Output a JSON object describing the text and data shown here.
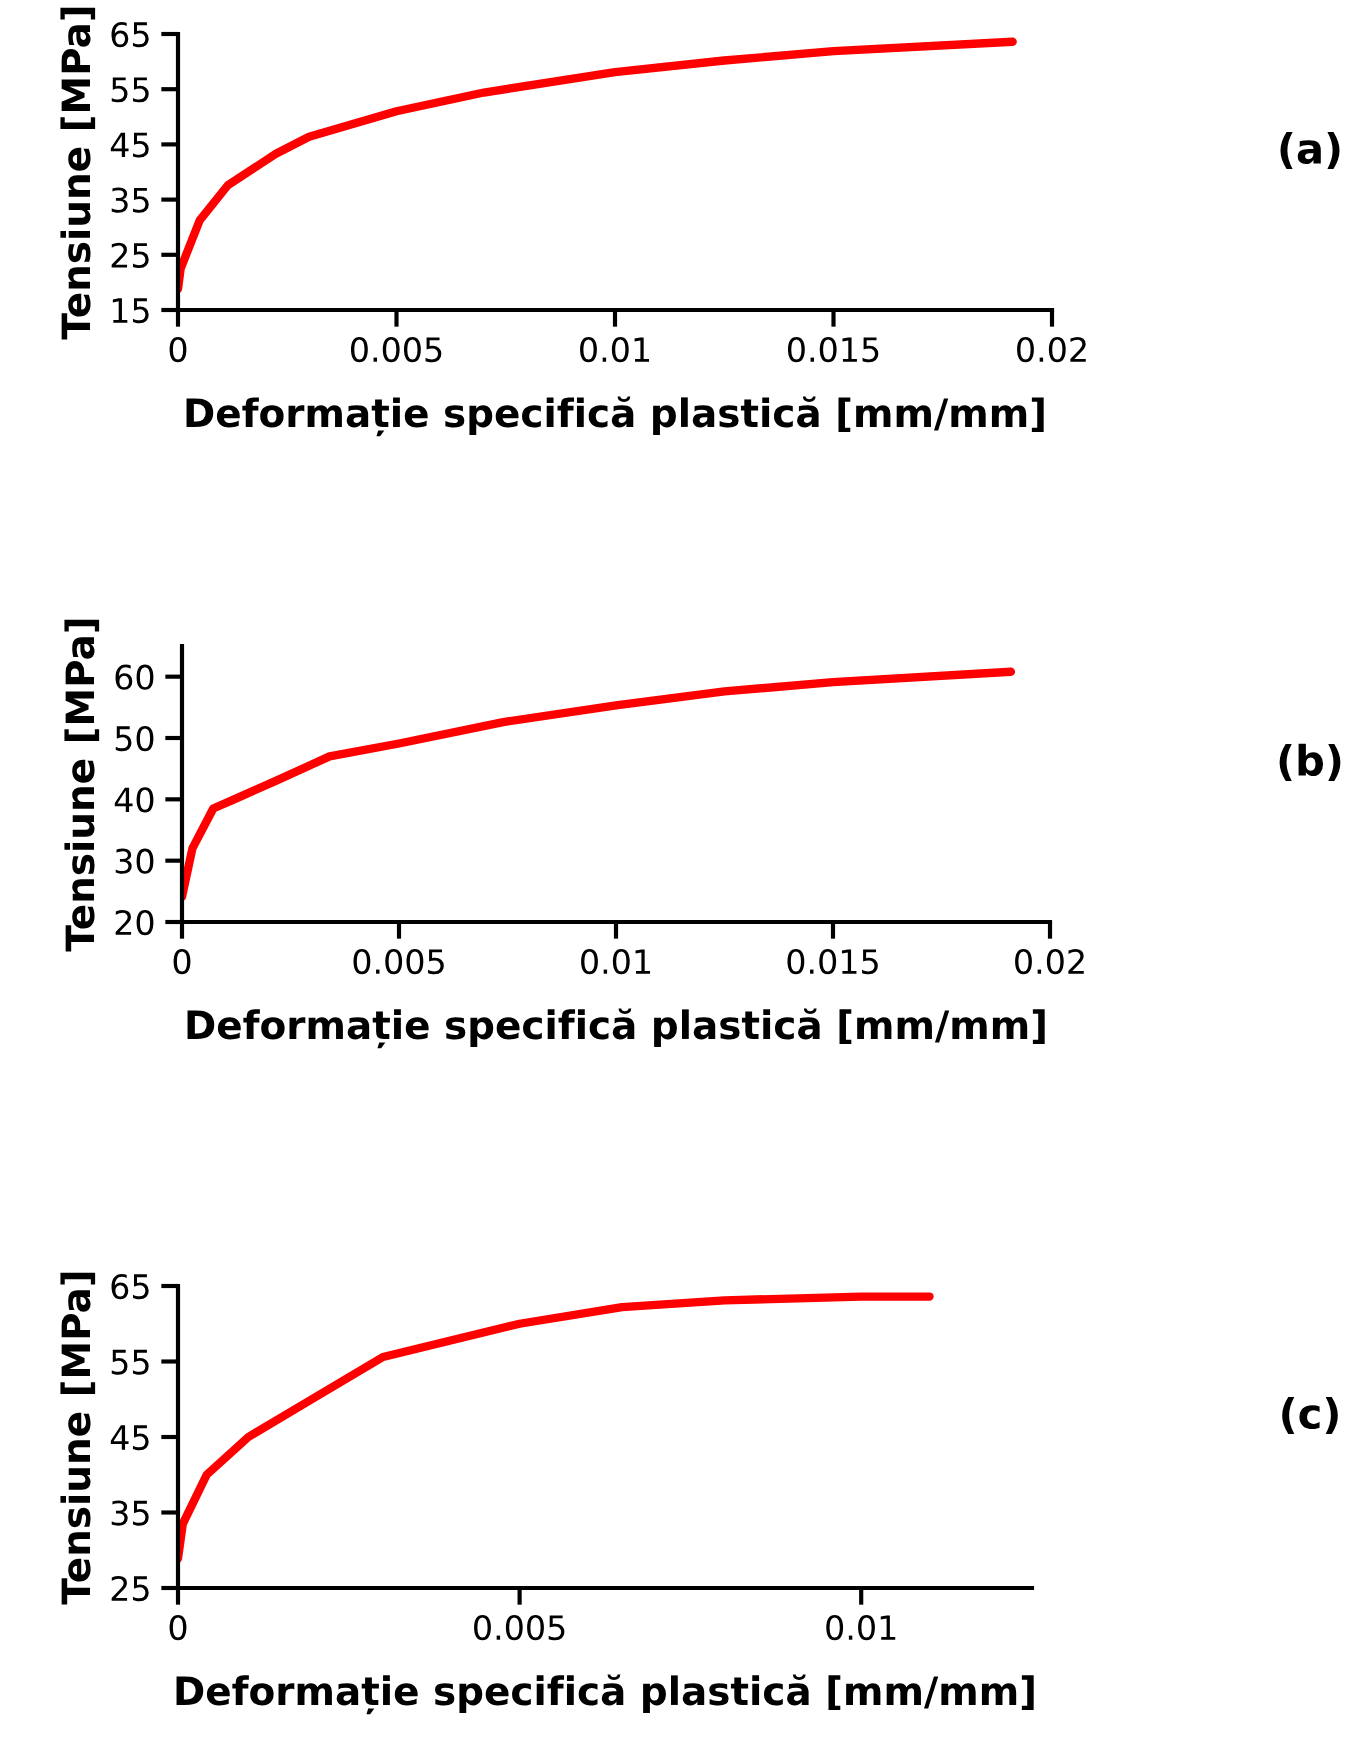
{
  "chart_data": [
    {
      "type": "line",
      "xlabel": "Deformație specifică plastică [mm/mm]",
      "ylabel": "Tensiune [MPa]",
      "annotations": [
        "(a)"
      ],
      "xlim": [
        0,
        0.02
      ],
      "xticks": [
        0,
        0.005,
        0.01,
        0.015,
        0.02
      ],
      "ylim": [
        15,
        65
      ],
      "yticks": [
        15,
        25,
        35,
        45,
        55,
        65
      ],
      "grid": false,
      "legend": false,
      "series": [
        {
          "color": "#ff0000",
          "x": [
            0,
            6e-05,
            0.0005,
            0.00114,
            0.00224,
            0.003,
            0.005,
            0.007,
            0.01,
            0.0125,
            0.015,
            0.0191
          ],
          "values": [
            18.8,
            22.5,
            31.3,
            37.6,
            43.3,
            46.4,
            51,
            54.4,
            58.1,
            60.2,
            61.9,
            63.6
          ]
        }
      ]
    },
    {
      "type": "line",
      "xlabel": "Deformație specifică plastică [mm/mm]",
      "ylabel": "Tensiune [MPa]",
      "annotations": [
        "(b)"
      ],
      "xlim": [
        0,
        0.02
      ],
      "xticks": [
        0,
        0.005,
        0.01,
        0.015,
        0.02
      ],
      "ylim": [
        20,
        65
      ],
      "yticks": [
        20,
        30,
        40,
        50,
        60
      ],
      "grid": false,
      "legend": false,
      "series": [
        {
          "color": "#ff0000",
          "x": [
            0,
            0.00024,
            0.00072,
            0.0012,
            0.00216,
            0.0034,
            0.005,
            0.0074,
            0.01,
            0.0125,
            0.015,
            0.0191
          ],
          "values": [
            24.1,
            32,
            38.5,
            40,
            43,
            47,
            49.1,
            52.6,
            55.3,
            57.6,
            59.1,
            60.8
          ]
        }
      ]
    },
    {
      "type": "line",
      "xlabel": "Deformație specifică plastică [mm/mm]",
      "ylabel": "Tensiune [MPa]",
      "annotations": [
        "(c)"
      ],
      "xlim": [
        0,
        0.0125
      ],
      "xticks": [
        0,
        0.005,
        0.01
      ],
      "ylim": [
        25,
        65
      ],
      "yticks": [
        25,
        35,
        45,
        55,
        65
      ],
      "grid": false,
      "legend": false,
      "series": [
        {
          "color": "#ff0000",
          "x": [
            0,
            7e-05,
            0.00042,
            0.00103,
            0.00194,
            0.003,
            0.005,
            0.0065,
            0.008,
            0.01,
            0.011
          ],
          "values": [
            28.9,
            33.5,
            40,
            45,
            49.9,
            55.6,
            60,
            62.2,
            63.1,
            63.6,
            63.6
          ]
        }
      ]
    }
  ]
}
